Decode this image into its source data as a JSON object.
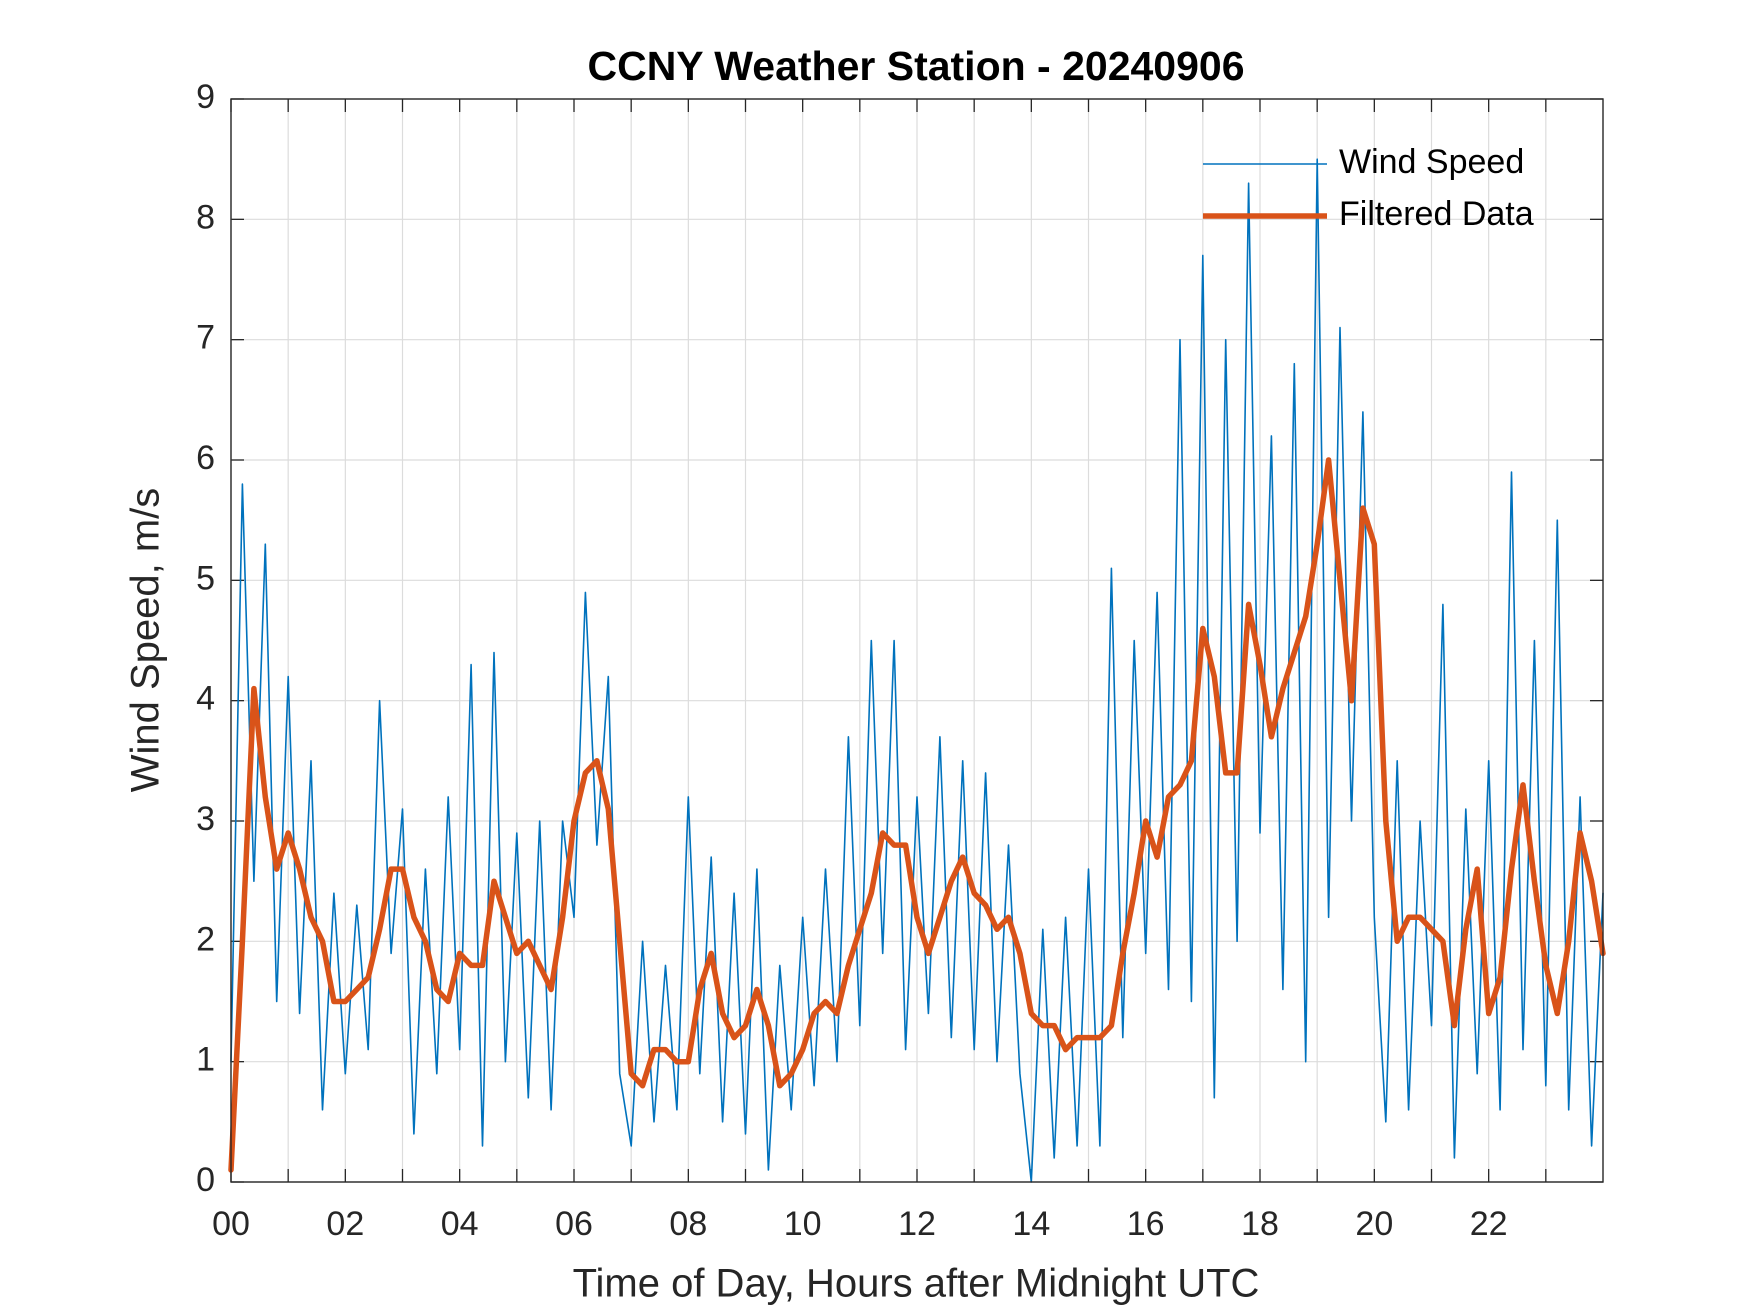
{
  "chart_data": {
    "type": "line",
    "title": "CCNY Weather Station - 20240906",
    "xlabel": "Time of Day, Hours after Midnight UTC",
    "ylabel": "Wind Speed, m/s",
    "x": [
      0,
      0.2,
      0.4,
      0.6,
      0.8,
      1,
      1.2,
      1.4,
      1.6,
      1.8,
      2,
      2.2,
      2.4,
      2.6,
      2.8,
      3,
      3.2,
      3.4,
      3.6,
      3.8,
      4,
      4.2,
      4.4,
      4.6,
      4.8,
      5,
      5.2,
      5.4,
      5.6,
      5.8,
      6,
      6.2,
      6.4,
      6.6,
      6.8,
      7,
      7.2,
      7.4,
      7.6,
      7.8,
      8,
      8.2,
      8.4,
      8.6,
      8.8,
      9,
      9.2,
      9.4,
      9.6,
      9.8,
      10,
      10.2,
      10.4,
      10.6,
      10.8,
      11,
      11.2,
      11.4,
      11.6,
      11.8,
      12,
      12.2,
      12.4,
      12.6,
      12.8,
      13,
      13.2,
      13.4,
      13.6,
      13.8,
      14,
      14.2,
      14.4,
      14.6,
      14.8,
      15,
      15.2,
      15.4,
      15.6,
      15.8,
      16,
      16.2,
      16.4,
      16.6,
      16.8,
      17,
      17.2,
      17.4,
      17.6,
      17.8,
      18,
      18.2,
      18.4,
      18.6,
      18.8,
      19,
      19.2,
      19.4,
      19.6,
      19.8,
      20,
      20.2,
      20.4,
      20.6,
      20.8,
      21,
      21.2,
      21.4,
      21.6,
      21.8,
      22,
      22.2,
      22.4,
      22.6,
      22.8,
      23,
      23.2,
      23.4,
      23.6,
      23.8,
      24
    ],
    "series": [
      {
        "name": "Wind Speed",
        "color": "#0072bd",
        "values": [
          1.0,
          5.8,
          2.5,
          5.3,
          1.5,
          4.2,
          1.4,
          3.5,
          0.6,
          2.4,
          0.9,
          2.3,
          1.1,
          4.0,
          1.9,
          3.1,
          0.4,
          2.6,
          0.9,
          3.2,
          1.1,
          4.3,
          0.3,
          4.4,
          1.0,
          2.9,
          0.7,
          3.0,
          0.6,
          3.0,
          2.2,
          4.9,
          2.8,
          4.2,
          0.9,
          0.3,
          2.0,
          0.5,
          1.8,
          0.6,
          3.2,
          0.9,
          2.7,
          0.5,
          2.4,
          0.4,
          2.6,
          0.1,
          1.8,
          0.6,
          2.2,
          0.8,
          2.6,
          1.0,
          3.7,
          1.3,
          4.5,
          1.9,
          4.5,
          1.1,
          3.2,
          1.4,
          3.7,
          1.2,
          3.5,
          1.1,
          3.4,
          1.0,
          2.8,
          0.9,
          0.0,
          2.1,
          0.2,
          2.2,
          0.3,
          2.6,
          0.3,
          5.1,
          1.2,
          4.5,
          1.9,
          4.9,
          1.6,
          7.0,
          1.5,
          7.7,
          0.7,
          7.0,
          2.0,
          8.3,
          2.9,
          6.2,
          1.6,
          6.8,
          1.0,
          8.5,
          2.2,
          7.1,
          3.0,
          6.4,
          2.2,
          0.5,
          3.5,
          0.6,
          3.0,
          1.3,
          4.8,
          0.2,
          3.1,
          0.9,
          3.5,
          0.6,
          5.9,
          1.1,
          4.5,
          0.8,
          5.5,
          0.6,
          3.2,
          0.3,
          2.4
        ]
      },
      {
        "name": "Filtered Data",
        "color": "#d95319",
        "values": [
          0.1,
          2.0,
          4.1,
          3.2,
          2.6,
          2.9,
          2.6,
          2.2,
          2.0,
          1.5,
          1.5,
          1.6,
          1.7,
          2.1,
          2.6,
          2.6,
          2.2,
          2.0,
          1.6,
          1.5,
          1.9,
          1.8,
          1.8,
          2.5,
          2.2,
          1.9,
          2.0,
          1.8,
          1.6,
          2.2,
          3.0,
          3.4,
          3.5,
          3.1,
          2.0,
          0.9,
          0.8,
          1.1,
          1.1,
          1.0,
          1.0,
          1.6,
          1.9,
          1.4,
          1.2,
          1.3,
          1.6,
          1.3,
          0.8,
          0.9,
          1.1,
          1.4,
          1.5,
          1.4,
          1.8,
          2.1,
          2.4,
          2.9,
          2.8,
          2.8,
          2.2,
          1.9,
          2.2,
          2.5,
          2.7,
          2.4,
          2.3,
          2.1,
          2.2,
          1.9,
          1.4,
          1.3,
          1.3,
          1.1,
          1.2,
          1.2,
          1.2,
          1.3,
          1.9,
          2.4,
          3.0,
          2.7,
          3.2,
          3.3,
          3.5,
          4.6,
          4.2,
          3.4,
          3.4,
          4.8,
          4.3,
          3.7,
          4.1,
          4.4,
          4.7,
          5.3,
          6.0,
          5.0,
          4.0,
          5.6,
          5.3,
          3.0,
          2.0,
          2.2,
          2.2,
          2.1,
          2.0,
          1.3,
          2.1,
          2.6,
          1.4,
          1.7,
          2.6,
          3.3,
          2.5,
          1.8,
          1.4,
          2.0,
          2.9,
          2.5,
          1.9
        ]
      }
    ],
    "xlim": [
      0,
      24
    ],
    "xticks": [
      {
        "value": 0,
        "label": "00"
      },
      {
        "value": 2,
        "label": "02"
      },
      {
        "value": 4,
        "label": "04"
      },
      {
        "value": 6,
        "label": "06"
      },
      {
        "value": 8,
        "label": "08"
      },
      10,
      12,
      14,
      16,
      18,
      20,
      22
    ],
    "x_minor_ticks": [
      1,
      3,
      5,
      7,
      9,
      11,
      13,
      15,
      17,
      19,
      21,
      23
    ],
    "ylim": [
      0,
      9
    ],
    "yticks": [
      0,
      1,
      2,
      3,
      4,
      5,
      6,
      7,
      8,
      9
    ],
    "grid": true,
    "legend": "northeast"
  }
}
